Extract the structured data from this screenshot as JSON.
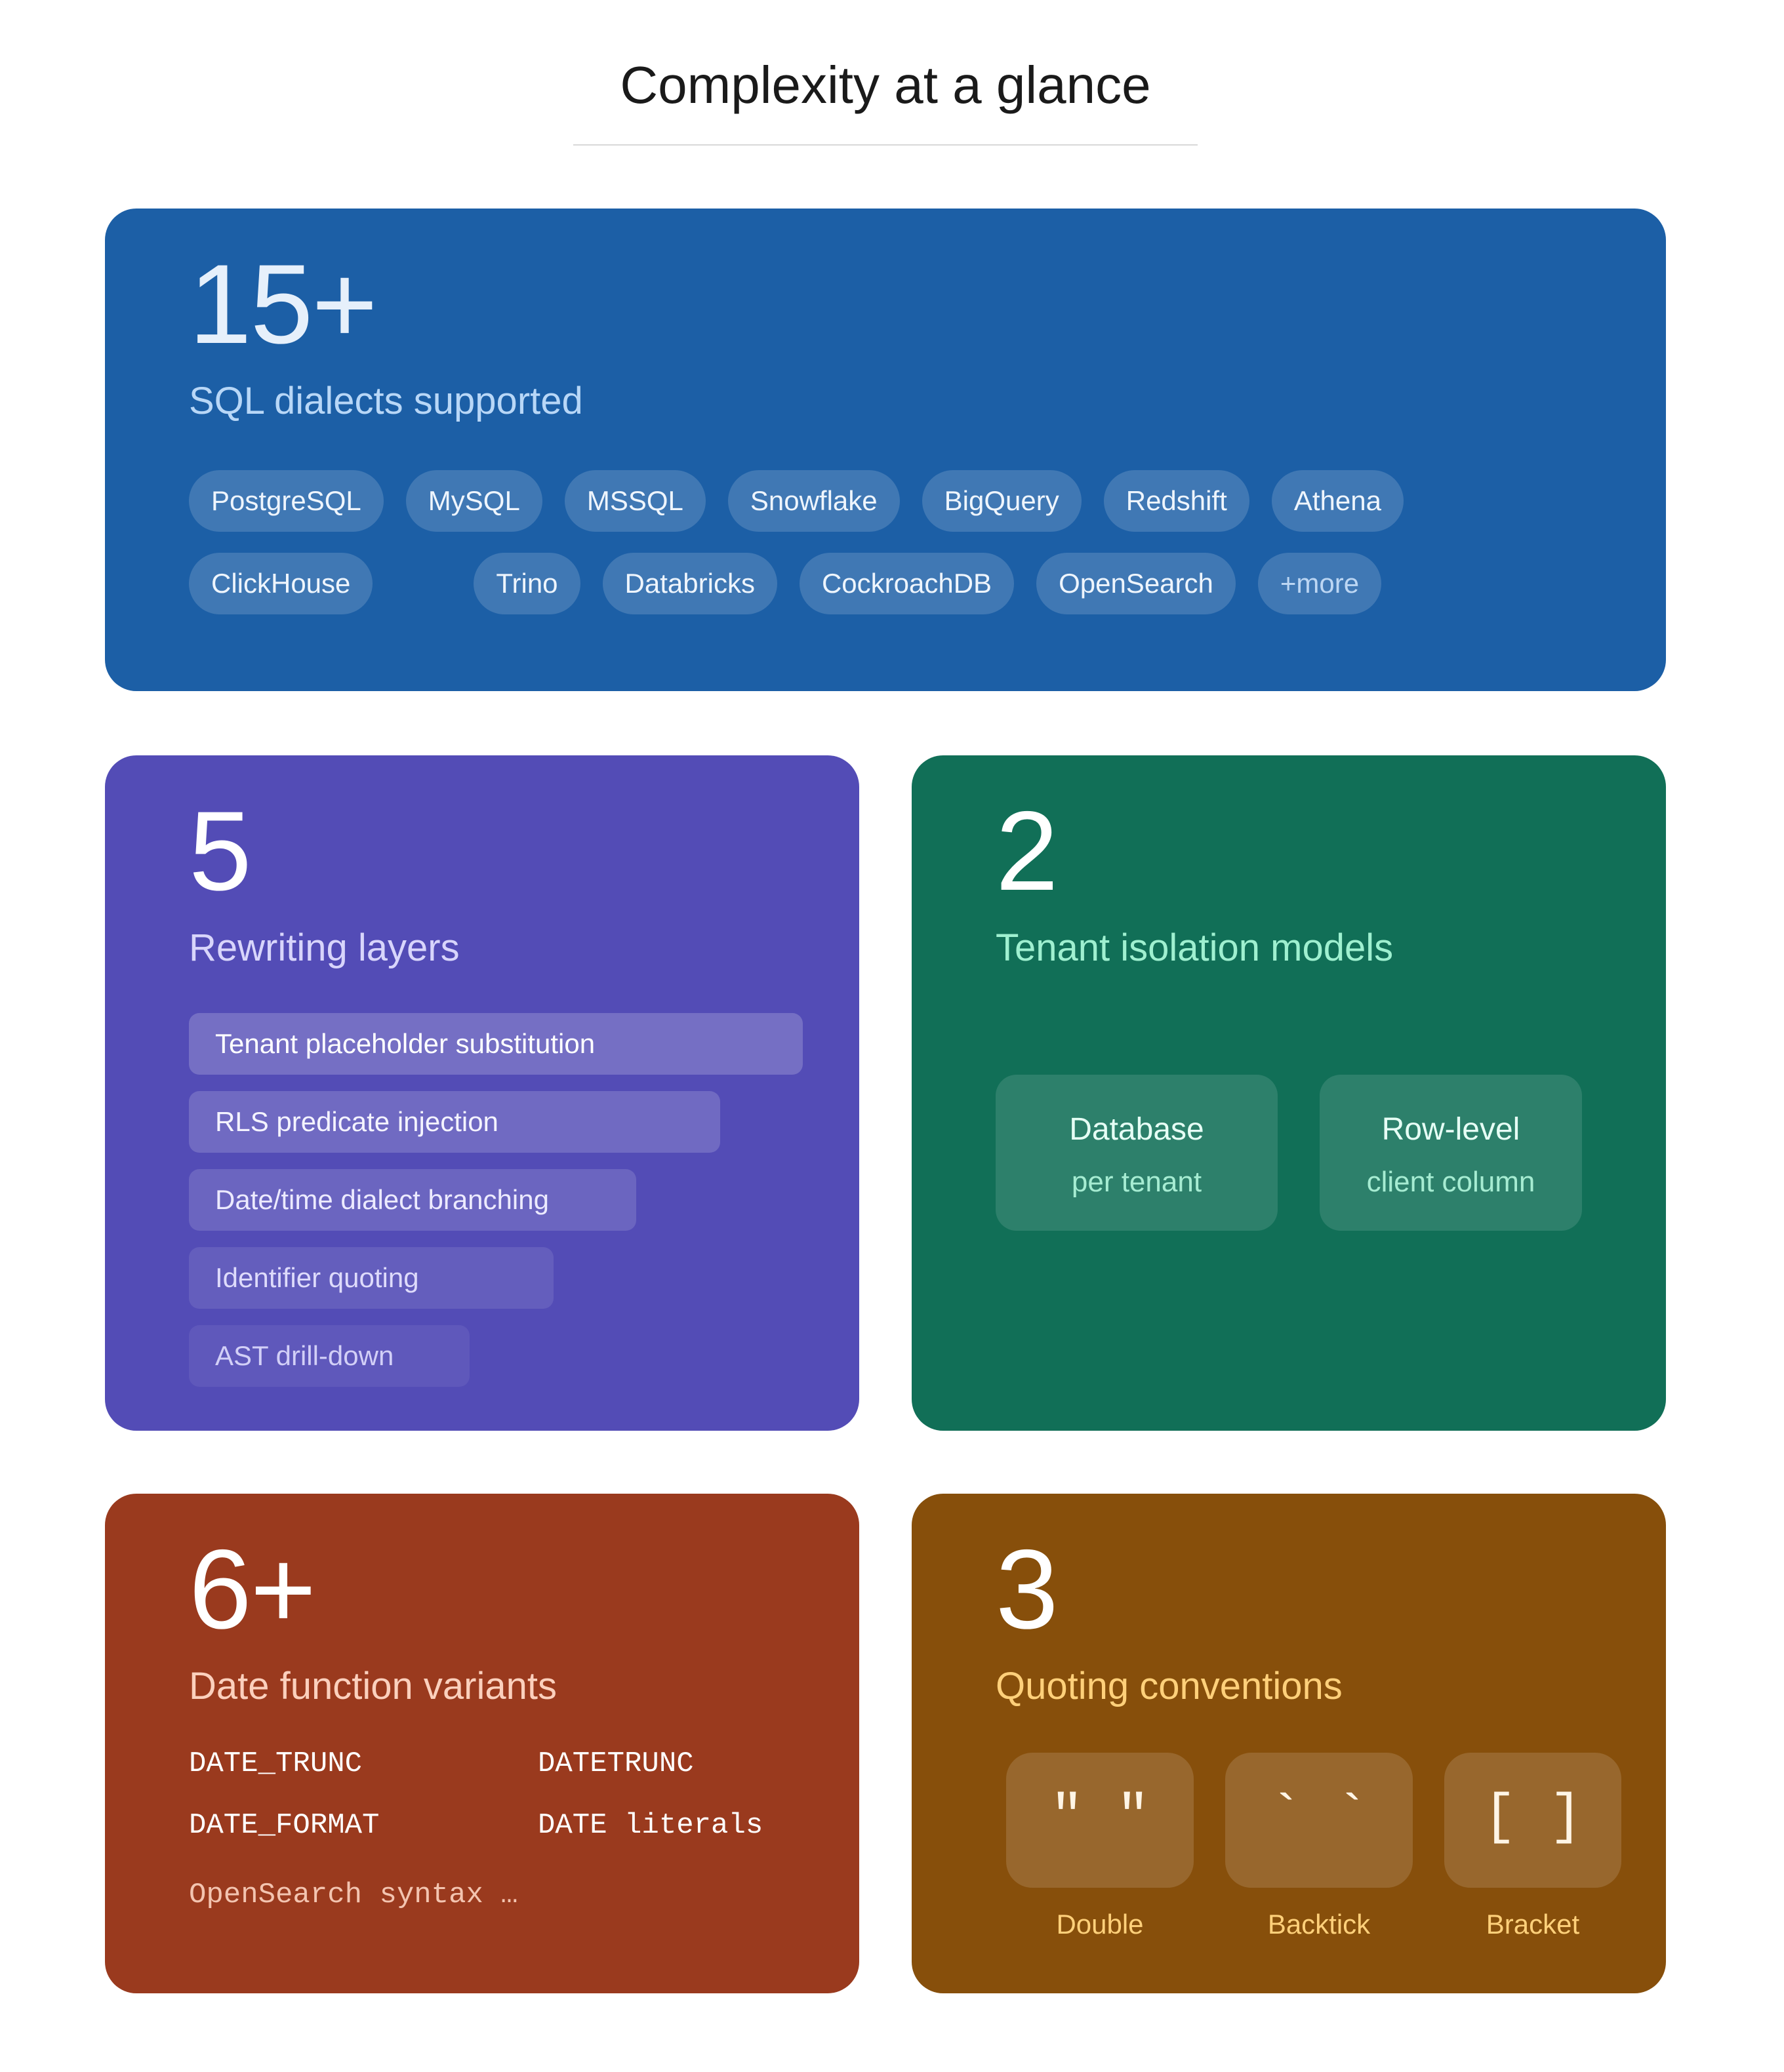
{
  "title": "Complexity at a glance",
  "dialects": {
    "count": "15+",
    "label": "SQL dialects supported",
    "chips": [
      "PostgreSQL",
      "MySQL",
      "MSSQL",
      "Snowflake",
      "BigQuery",
      "Redshift",
      "Athena",
      "ClickHouse",
      "Trino",
      "Databricks",
      "CockroachDB",
      "OpenSearch"
    ],
    "more": "+more",
    "color": "#1c5fa6"
  },
  "layers": {
    "count": "5",
    "label": "Rewriting layers",
    "items": [
      "Tenant placeholder substitution",
      "RLS predicate injection",
      "Date/time dialect branching",
      "Identifier quoting",
      "AST drill-down"
    ],
    "color": "#534cb6"
  },
  "tenant": {
    "count": "2",
    "label": "Tenant isolation models",
    "models": [
      {
        "title": "Database",
        "sub": "per tenant"
      },
      {
        "title": "Row-level",
        "sub": "client column"
      }
    ],
    "color": "#116f57"
  },
  "dates": {
    "count": "6+",
    "label": "Date function variants",
    "functions": [
      "DATE_TRUNC",
      "DATETRUNC",
      "DATE_FORMAT",
      "DATE literals"
    ],
    "extra": "OpenSearch syntax …",
    "color": "#9a3a1e"
  },
  "quoting": {
    "count": "3",
    "label": "Quoting conventions",
    "styles": [
      {
        "glyph": "\" \"",
        "name": "Double"
      },
      {
        "glyph": "` `",
        "name": "Backtick"
      },
      {
        "glyph": "[ ]",
        "name": "Bracket"
      }
    ],
    "color": "#874f0b"
  }
}
